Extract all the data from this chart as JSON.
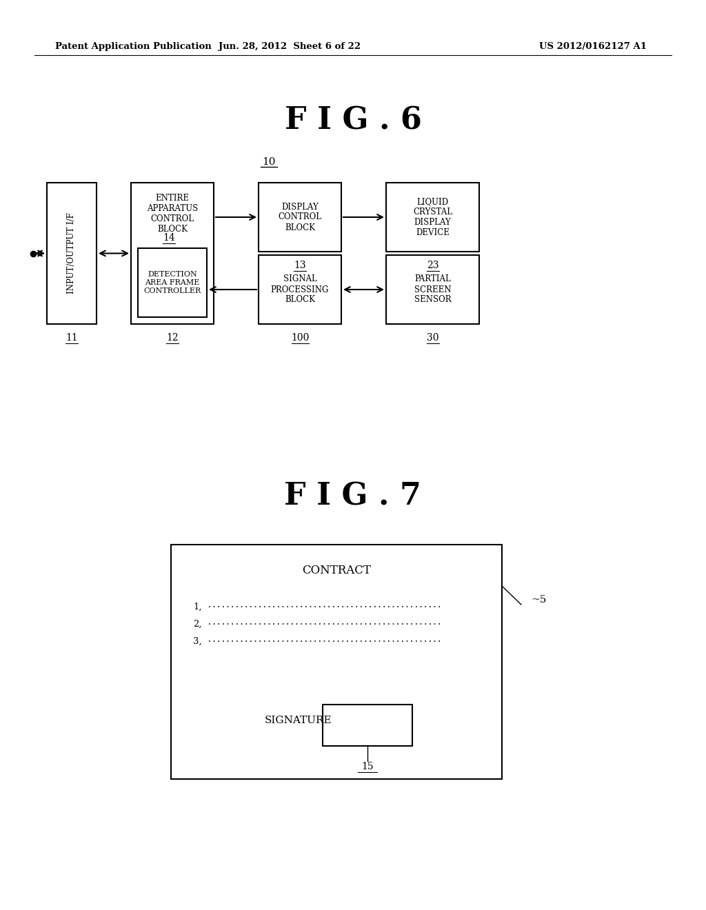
{
  "bg_color": "#ffffff",
  "header_left": "Patent Application Publication",
  "header_mid": "Jun. 28, 2012  Sheet 6 of 22",
  "header_right": "US 2012/0162127 A1",
  "fig6_title": "F I G . 6",
  "fig7_title": "F I G . 7"
}
